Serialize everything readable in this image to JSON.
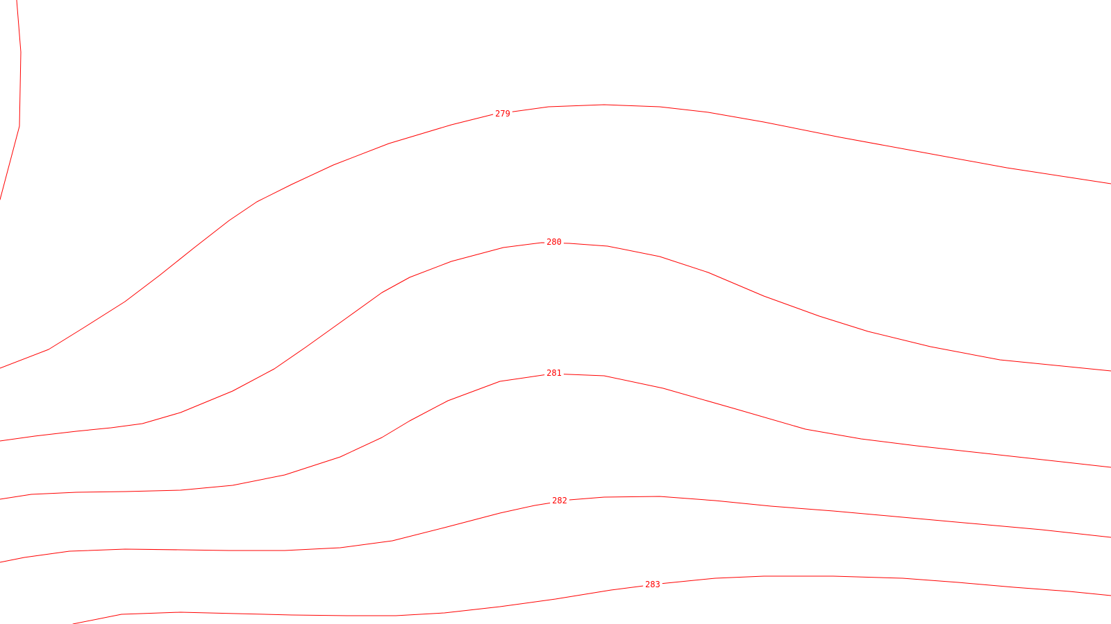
{
  "map": {
    "line_color": "#ff0000",
    "background_color": "#ffffff",
    "contours": [
      {
        "label": "279"
      },
      {
        "label": "280"
      },
      {
        "label": "281"
      },
      {
        "label": "282"
      },
      {
        "label": "283"
      }
    ]
  }
}
